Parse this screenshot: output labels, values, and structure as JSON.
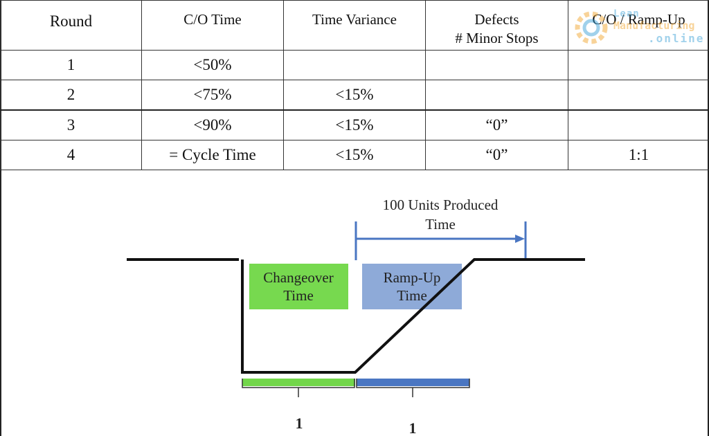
{
  "table": {
    "headers": [
      {
        "line1": "Round",
        "line2": ""
      },
      {
        "line1": "C/O Time",
        "line2": ""
      },
      {
        "line1": "Time Variance",
        "line2": ""
      },
      {
        "line1": "Defects",
        "line2": "# Minor Stops"
      },
      {
        "line1": "C/O / Ramp-Up",
        "line2": ""
      }
    ],
    "rows": [
      [
        "1",
        "<50%",
        "",
        "",
        ""
      ],
      [
        "2",
        "<75%",
        "<15%",
        "",
        ""
      ],
      [
        "3",
        "<90%",
        "<15%",
        "“0”",
        ""
      ],
      [
        "4",
        "= Cycle Time",
        "<15%",
        "“0”",
        "1:1"
      ]
    ]
  },
  "watermark": {
    "line1": "Lean",
    "line2": "Manufacturing",
    "line3": ".online"
  },
  "diagram": {
    "units_label_line1": "100 Units Produced",
    "units_label_line2": "Time",
    "changeover_label_line1": "Changeover",
    "changeover_label_line2": "Time",
    "rampup_label_line1": "Ramp-Up",
    "rampup_label_line2": "Time",
    "changeover_ratio": "1",
    "rampup_ratio": "1",
    "colors": {
      "changeover_fill": "#77d94f",
      "changeover_bar": "#72d64a",
      "rampup_fill": "#8eaad8",
      "rampup_bar": "#4a76c2",
      "arrow": "#4a76c2",
      "line": "#111111"
    }
  }
}
